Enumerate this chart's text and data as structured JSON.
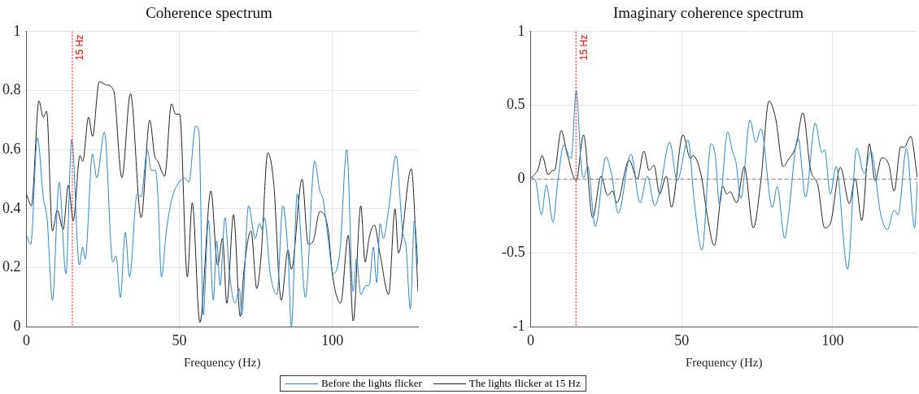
{
  "chart_data": [
    {
      "type": "line",
      "title": "Coherence spectrum",
      "xlabel": "Frequency (Hz)",
      "xlim": [
        0,
        128
      ],
      "xticks": [
        0,
        50,
        100
      ],
      "ylim": [
        0,
        1
      ],
      "yticks": [
        0,
        0.2,
        0.4,
        0.6,
        0.8,
        1
      ],
      "grid": true,
      "legend": "bottom",
      "marker": "none",
      "line_style": "solid",
      "ref_lines": [
        {
          "axis": "x",
          "value": 15,
          "label": "15 Hz",
          "color": "#ff0000",
          "line_style": "dotted"
        }
      ],
      "series": [
        {
          "name": "Before the lights flicker",
          "color": "#2e86c8",
          "x": [
            0,
            1.4,
            3.6,
            5.5,
            6.8,
            8.5,
            10.7,
            12.9,
            14.8,
            17.3,
            18.4,
            19.2,
            21.6,
            23,
            25.5,
            28.2,
            29.3,
            30.7,
            32.3,
            33.7,
            36.2,
            37.5,
            39.5,
            40.8,
            42.2,
            43,
            44.1,
            45.8,
            47.7,
            49.9,
            51.7,
            53.1,
            55.3,
            56.4,
            57.8,
            59.5,
            61.1,
            62.2,
            63.3,
            64.9,
            66.3,
            68.2,
            69.6,
            70.4,
            72.6,
            74.8,
            76.2,
            77,
            77.8,
            79.7,
            81.9,
            83.8,
            85.5,
            86.6,
            88.5,
            91.2,
            94.2,
            95.9,
            97,
            98.6,
            100.3,
            102.5,
            104.7,
            106.8,
            107.9,
            109.3,
            111,
            112,
            113.4,
            114.5,
            115.6,
            116.7,
            118.4,
            120.8,
            123,
            124.1,
            125.5,
            126.8,
            128
          ],
          "values": [
            0.31,
            0.28,
            0.64,
            0.44,
            0.36,
            0.09,
            0.49,
            0.18,
            0.635,
            0.21,
            0.27,
            0.23,
            0.585,
            0.505,
            0.66,
            0.22,
            0.24,
            0.1,
            0.32,
            0.17,
            0.45,
            0.44,
            0.6,
            0.53,
            0.53,
            0.44,
            0.17,
            0.33,
            0.44,
            0.49,
            0.505,
            0.49,
            0.68,
            0.66,
            0.04,
            0.36,
            0.09,
            0.29,
            0.14,
            0.37,
            0.19,
            0.08,
            0.13,
            0.04,
            0.41,
            0.3,
            0.35,
            0.33,
            0.37,
            0.18,
            0.11,
            0.41,
            0.25,
            0.0,
            0.45,
            0.1,
            0.56,
            0.46,
            0.43,
            0.3,
            0.18,
            0.26,
            0.6,
            0.12,
            0.23,
            0.11,
            0.14,
            0.14,
            0.27,
            0.15,
            0.35,
            0.3,
            0.4,
            0.58,
            0.32,
            0.27,
            0.06,
            0.36,
            0.21
          ]
        },
        {
          "name": "The lights flicker at 15 Hz",
          "color": "#222222",
          "x": [
            0,
            1.6,
            4.1,
            5.5,
            6.6,
            8.5,
            10.1,
            12,
            13.7,
            15.3,
            17.5,
            18.4,
            20.3,
            21.6,
            23.8,
            26,
            28.5,
            31.2,
            34,
            37.5,
            40.3,
            41.9,
            43,
            45.2,
            47.4,
            48.8,
            50.1,
            52.6,
            54.2,
            56.7,
            60.3,
            62.5,
            64.1,
            65.5,
            67.7,
            69.9,
            71,
            73.4,
            75.3,
            76.7,
            78.9,
            80.8,
            83.3,
            85.5,
            86.6,
            90.1,
            92.1,
            93.7,
            95.9,
            98.6,
            100,
            102.7,
            105.2,
            106.8,
            109.3,
            110.7,
            112,
            113.7,
            115.6,
            118.4,
            120.5,
            121.6,
            125.8,
            128
          ],
          "values": [
            0.45,
            0.41,
            0.765,
            0.71,
            0.73,
            0.325,
            0.395,
            0.33,
            0.48,
            0.36,
            0.58,
            0.56,
            0.71,
            0.645,
            0.83,
            0.82,
            0.8,
            0.505,
            0.79,
            0.37,
            0.7,
            0.58,
            0.56,
            0.51,
            0.755,
            0.72,
            0.72,
            0.17,
            0.42,
            0.015,
            0.46,
            0.21,
            0.3,
            0.08,
            0.38,
            0.035,
            0.18,
            0.325,
            0.13,
            0.24,
            0.59,
            0.49,
            0.09,
            0.26,
            0.195,
            0.5,
            0.28,
            0.29,
            0.39,
            0.33,
            0.18,
            0.08,
            0.31,
            0.02,
            0.41,
            0.22,
            0.3,
            0.345,
            0.245,
            0.11,
            0.4,
            0.25,
            0.535,
            0.12
          ]
        }
      ]
    },
    {
      "type": "line",
      "title": "Imaginary coherence spectrum",
      "xlabel": "Frequency (Hz)",
      "xlim": [
        0,
        128
      ],
      "xticks": [
        0,
        50,
        100
      ],
      "ylim": [
        -1,
        1
      ],
      "yticks": [
        -1,
        -0.5,
        0,
        0.5,
        1
      ],
      "grid": true,
      "marker": "none",
      "line_style": "solid",
      "ref_lines": [
        {
          "axis": "x",
          "value": 15,
          "label": "15 Hz",
          "color": "#ff0000",
          "line_style": "dotted"
        },
        {
          "axis": "y",
          "value": 0,
          "color": "#808080",
          "line_style": "dashed"
        }
      ],
      "series": [
        {
          "color": "#2e86c8",
          "x": [
            0.3,
            1.6,
            3.6,
            5.2,
            7.4,
            9,
            11,
            12.6,
            13.4,
            15.1,
            16.7,
            17.5,
            18.9,
            21.4,
            24.9,
            26.8,
            29,
            33.2,
            36.2,
            38.6,
            41.1,
            42.7,
            46,
            48.5,
            52.1,
            54.2,
            56.7,
            59.7,
            61.1,
            62.5,
            65.2,
            66.8,
            67.9,
            69.6,
            72.6,
            74.5,
            76.2,
            80,
            81.6,
            84.1,
            85.2,
            88.5,
            91,
            94.2,
            96.4,
            97.3,
            99.2,
            101.1,
            104.9,
            107.9,
            110.4,
            112.6,
            115.9,
            118.1,
            120.3,
            121.6,
            124.4,
            127.1,
            128
          ],
          "values": [
            0.01,
            -0.01,
            -0.24,
            -0.04,
            -0.29,
            -0.01,
            0.23,
            0.16,
            0.14,
            0.6,
            0.1,
            0.01,
            0.085,
            -0.32,
            0.15,
            0.03,
            -0.23,
            0.17,
            -0.16,
            0.02,
            -0.18,
            -0.085,
            0.25,
            -0.01,
            0.265,
            -0.16,
            -0.48,
            0.24,
            0.16,
            -0.17,
            0.32,
            0.19,
            0.12,
            -0.13,
            0.4,
            0.25,
            0.34,
            -0.19,
            -0.05,
            -0.4,
            -0.27,
            0.28,
            -0.12,
            0.38,
            0.18,
            0.2,
            -0.1,
            0.085,
            -0.61,
            0.21,
            0.04,
            0.19,
            -0.24,
            -0.34,
            -0.21,
            -0.24,
            0.21,
            -0.33,
            -0.01
          ]
        },
        {
          "color": "#222222",
          "x": [
            0.3,
            2.5,
            3.8,
            5.8,
            7.4,
            7.9,
            10.1,
            12.1,
            15.1,
            17.5,
            20.5,
            23.3,
            25.5,
            27.1,
            28.5,
            32.6,
            35.3,
            37.5,
            39.2,
            40.8,
            42.7,
            44.9,
            46.6,
            50.4,
            52.9,
            53.7,
            56.4,
            58.4,
            60.8,
            63.6,
            64.9,
            66,
            68.2,
            70.7,
            73.7,
            76.2,
            78.9,
            81.1,
            83.6,
            85.2,
            87.9,
            90.1,
            92.6,
            95.1,
            97.3,
            99.2,
            102.5,
            105.5,
            107.4,
            109.6,
            112.1,
            114,
            116.2,
            118.6,
            120.3,
            122.5,
            123.6,
            125.8,
            128
          ],
          "values": [
            0.01,
            0.07,
            0.16,
            0.03,
            0.06,
            0.06,
            0.33,
            0.17,
            -0.01,
            0.3,
            -0.26,
            0.02,
            -0.11,
            -0.08,
            -0.16,
            0.13,
            0.0,
            0.19,
            0.06,
            0.095,
            -0.1,
            0.02,
            -0.19,
            0.3,
            0.14,
            0.16,
            0.03,
            -0.24,
            -0.45,
            -0.05,
            -0.1,
            -0.085,
            -0.16,
            0.085,
            -0.33,
            -0.01,
            0.53,
            0.41,
            0.085,
            0.13,
            0.23,
            0.45,
            0.07,
            -0.045,
            -0.33,
            -0.3,
            0.08,
            -0.165,
            0.005,
            -0.28,
            0.24,
            -0.01,
            0.145,
            0.095,
            -0.08,
            0.22,
            0.215,
            0.29,
            0.01
          ]
        }
      ]
    }
  ]
}
